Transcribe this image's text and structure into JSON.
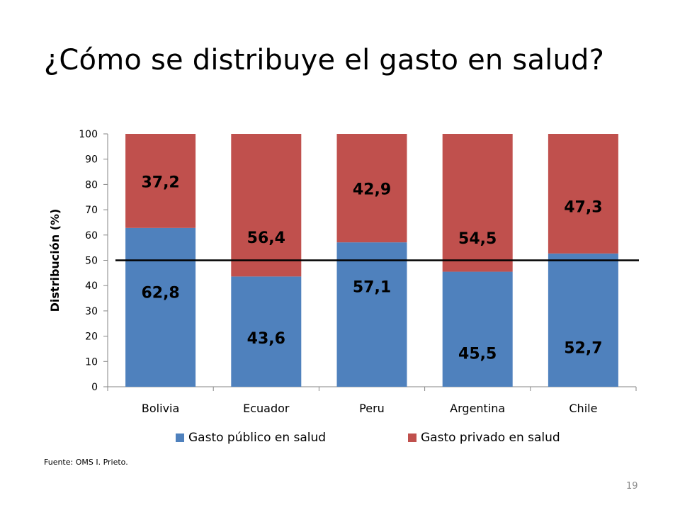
{
  "slide": {
    "title": "¿Cómo se distribuye el gasto en salud?",
    "source": "Fuente: OMS  I.  Prieto.",
    "page_number": "19"
  },
  "chart_data": {
    "type": "bar",
    "stacked": true,
    "ylabel": "Distribución (%)",
    "xlabel": "",
    "ylim": [
      0,
      100
    ],
    "yticks": [
      0,
      10,
      20,
      30,
      40,
      50,
      60,
      70,
      80,
      90,
      100
    ],
    "categories": [
      "Bolivia",
      "Ecuador",
      "Peru",
      "Argentina",
      "Chile"
    ],
    "series": [
      {
        "name": "Gasto público en salud",
        "color": "#4f81bd",
        "values": [
          62.8,
          43.6,
          57.1,
          45.5,
          52.7
        ],
        "labels": [
          "62,8",
          "43,6",
          "57,1",
          "45,5",
          "52,7"
        ]
      },
      {
        "name": "Gasto privado en salud",
        "color": "#c0504d",
        "values": [
          37.2,
          56.4,
          42.9,
          54.5,
          47.3
        ],
        "labels": [
          "37,2",
          "56,4",
          "42,9",
          "54,5",
          "47,3"
        ]
      }
    ],
    "reference_line": {
      "y": 50,
      "color": "#000000"
    },
    "legend_position": "bottom",
    "grid": false
  }
}
